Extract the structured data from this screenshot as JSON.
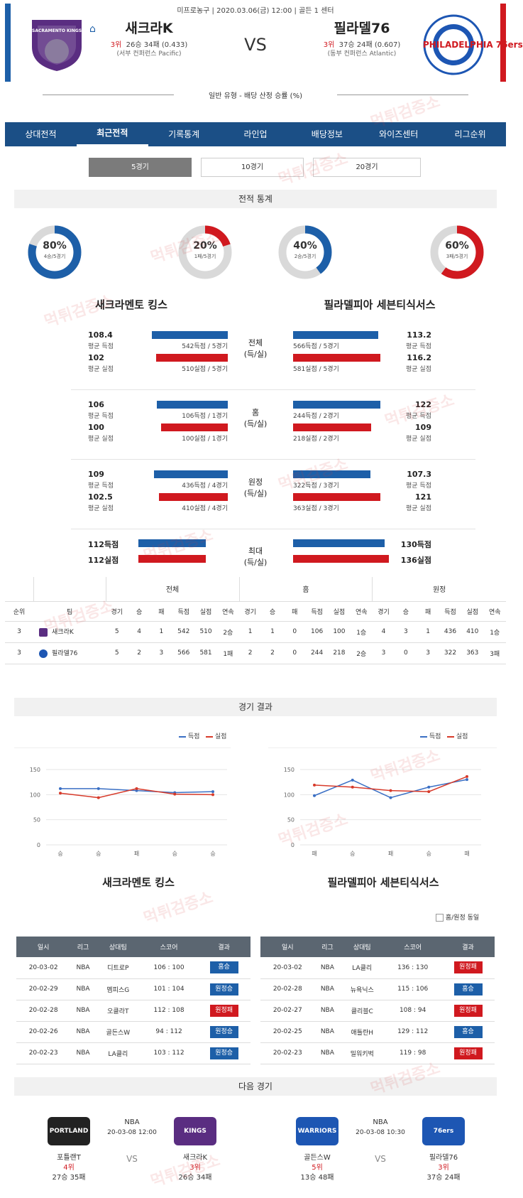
{
  "header": {
    "league": "미프로농구",
    "date": "2020.03.06(금) 12:00",
    "venue": "골든 1 센터",
    "vs": "VS",
    "home_logo_text": "SACRAMENTO KINGS",
    "away_logo_text": "PHILADELPHIA 76ers",
    "left": {
      "name": "새크라K",
      "rank": "3위",
      "record": "26승 34패 (0.433)",
      "conf": "(서부 컨퍼런스 Pacific)"
    },
    "right": {
      "name": "필라델76",
      "rank": "3위",
      "record": "37승 24패 (0.607)",
      "conf": "(동부 컨퍼런스 Atlantic)"
    },
    "subtitle": "일반 유형 - 배당 산정 승률 (%)"
  },
  "nav": [
    "상대전적",
    "최근전적",
    "기록통계",
    "라인업",
    "배당정보",
    "와이즈센터",
    "리그순위"
  ],
  "nav_active": 1,
  "segments": [
    "5경기",
    "10경기",
    "20경기"
  ],
  "watermark": "먹튀검증소",
  "colors": {
    "accent": "#1d5fa8",
    "loss": "#d0191f",
    "nav": "#1b4f86"
  },
  "record_stats": {
    "title": "전적 통계",
    "donuts": [
      {
        "pct": "80%",
        "sub": "4승/5경기",
        "value": 0.8,
        "color": "#1d5fa8"
      },
      {
        "pct": "20%",
        "sub": "1패/5경기",
        "value": 0.2,
        "color": "#d0191f"
      },
      {
        "pct": "40%",
        "sub": "2승/5경기",
        "value": 0.4,
        "color": "#1d5fa8"
      },
      {
        "pct": "60%",
        "sub": "3패/5경기",
        "value": 0.6,
        "color": "#d0191f"
      }
    ],
    "team_left": "새크라멘토 킹스",
    "team_right": "필라델피아 세븐티식서스",
    "groups": [
      {
        "label": "전체\n(득/실)",
        "left": [
          {
            "val": "108.4",
            "lbl": "평균 득점",
            "bar": "542득점 / 5경기"
          },
          {
            "val": "102",
            "lbl": "평균 실점",
            "bar": "510실점 / 5경기"
          }
        ],
        "right": [
          {
            "val": "113.2",
            "lbl": "평균 득점",
            "bar": "566득점 / 5경기"
          },
          {
            "val": "116.2",
            "lbl": "평균 실점",
            "bar": "581실점 / 5경기"
          }
        ]
      },
      {
        "label": "홈\n(득/실)",
        "left": [
          {
            "val": "106",
            "lbl": "평균 득점",
            "bar": "106득점 / 1경기"
          },
          {
            "val": "100",
            "lbl": "평균 실점",
            "bar": "100실점 / 1경기"
          }
        ],
        "right": [
          {
            "val": "122",
            "lbl": "평균 득점",
            "bar": "244득점 / 2경기"
          },
          {
            "val": "109",
            "lbl": "평균 실점",
            "bar": "218실점 / 2경기"
          }
        ]
      },
      {
        "label": "원정\n(득/실)",
        "left": [
          {
            "val": "109",
            "lbl": "평균 득점",
            "bar": "436득점 / 4경기"
          },
          {
            "val": "102.5",
            "lbl": "평균 실점",
            "bar": "410실점 / 4경기"
          }
        ],
        "right": [
          {
            "val": "107.3",
            "lbl": "평균 득점",
            "bar": "322득점 / 3경기"
          },
          {
            "val": "121",
            "lbl": "평균 실점",
            "bar": "363실점 / 3경기"
          }
        ]
      },
      {
        "label": "최대\n(득/실)",
        "left": [
          {
            "val": "112득점",
            "lbl": "",
            "bar": ""
          },
          {
            "val": "112실점",
            "lbl": "",
            "bar": ""
          }
        ],
        "right": [
          {
            "val": "130득점",
            "lbl": "",
            "bar": ""
          },
          {
            "val": "136실점",
            "lbl": "",
            "bar": ""
          }
        ]
      }
    ]
  },
  "standings": {
    "groups": [
      "전체",
      "홈",
      "원정"
    ],
    "cols": [
      "순위",
      "팀",
      "경기",
      "승",
      "패",
      "득점",
      "실점",
      "연속",
      "경기",
      "승",
      "패",
      "득점",
      "실점",
      "연속",
      "경기",
      "승",
      "패",
      "득점",
      "실점",
      "연속"
    ],
    "rows": [
      [
        "3",
        "새크라K",
        "5",
        "4",
        "1",
        "542",
        "510",
        "2승",
        "1",
        "1",
        "0",
        "106",
        "100",
        "1승",
        "4",
        "3",
        "1",
        "436",
        "410",
        "1승"
      ],
      [
        "3",
        "필라델76",
        "5",
        "2",
        "3",
        "566",
        "581",
        "1패",
        "2",
        "2",
        "0",
        "244",
        "218",
        "2승",
        "3",
        "0",
        "3",
        "322",
        "363",
        "3패"
      ]
    ]
  },
  "results": {
    "title": "경기 결과",
    "legend": [
      "득점",
      "실점"
    ],
    "left_team": "새크라멘토 킹스",
    "right_team": "필라델피아 세븐티식서스",
    "checkbox_label": "홈/원정 동일",
    "headers": [
      "일시",
      "리그",
      "상대팀",
      "스코어",
      "결과"
    ],
    "left_rows": [
      [
        "20-03-02",
        "NBA",
        "디트로P",
        "106 : 100",
        "홈승"
      ],
      [
        "20-02-29",
        "NBA",
        "멤피스G",
        "101 : 104",
        "원정승"
      ],
      [
        "20-02-28",
        "NBA",
        "오클라T",
        "112 : 108",
        "원정패"
      ],
      [
        "20-02-26",
        "NBA",
        "골든스W",
        "94 : 112",
        "원정승"
      ],
      [
        "20-02-23",
        "NBA",
        "LA클리",
        "103 : 112",
        "원정승"
      ]
    ],
    "right_rows": [
      [
        "20-03-02",
        "NBA",
        "LA클리",
        "136 : 130",
        "원정패"
      ],
      [
        "20-02-28",
        "NBA",
        "뉴욕닉스",
        "115 : 106",
        "홈승"
      ],
      [
        "20-02-27",
        "NBA",
        "클리블C",
        "108 : 94",
        "원정패"
      ],
      [
        "20-02-25",
        "NBA",
        "애틀란H",
        "129 : 112",
        "홈승"
      ],
      [
        "20-02-23",
        "NBA",
        "밀워키벅",
        "119 : 98",
        "원정패"
      ]
    ]
  },
  "chart_data": [
    {
      "type": "line",
      "x": [
        "승",
        "승",
        "패",
        "승",
        "승"
      ],
      "ylim": [
        0,
        150
      ],
      "yticks": [
        0,
        50,
        100,
        150
      ],
      "series": [
        {
          "name": "득점",
          "color": "#3a6fc4",
          "values": [
            112,
            112,
            108,
            104,
            106
          ]
        },
        {
          "name": "실점",
          "color": "#d73a2a",
          "values": [
            103,
            94,
            112,
            101,
            100
          ]
        }
      ]
    },
    {
      "type": "line",
      "x": [
        "패",
        "승",
        "패",
        "승",
        "패"
      ],
      "ylim": [
        0,
        150
      ],
      "yticks": [
        0,
        50,
        100,
        150
      ],
      "series": [
        {
          "name": "득점",
          "color": "#3a6fc4",
          "values": [
            98,
            129,
            94,
            115,
            130
          ]
        },
        {
          "name": "실점",
          "color": "#d73a2a",
          "values": [
            119,
            115,
            108,
            106,
            136
          ]
        }
      ]
    }
  ],
  "next": {
    "title": "다음 경기",
    "left": {
      "league": "NBA",
      "time": "20-03-08 12:00",
      "vs": "VS",
      "a": {
        "logo": "PORTLAND",
        "name": "포틀랜T",
        "rank": "4위",
        "rec": "27승 35패"
      },
      "b": {
        "logo": "KINGS",
        "name": "새크라K",
        "rank": "3위",
        "rec": "26승 34패"
      }
    },
    "right": {
      "league": "NBA",
      "time": "20-03-08 10:30",
      "vs": "VS",
      "a": {
        "logo": "WARRIORS",
        "name": "골든스W",
        "rank": "5위",
        "rec": "13승 48패"
      },
      "b": {
        "logo": "76ers",
        "name": "필라델76",
        "rank": "3위",
        "rec": "37승 24패"
      }
    }
  }
}
